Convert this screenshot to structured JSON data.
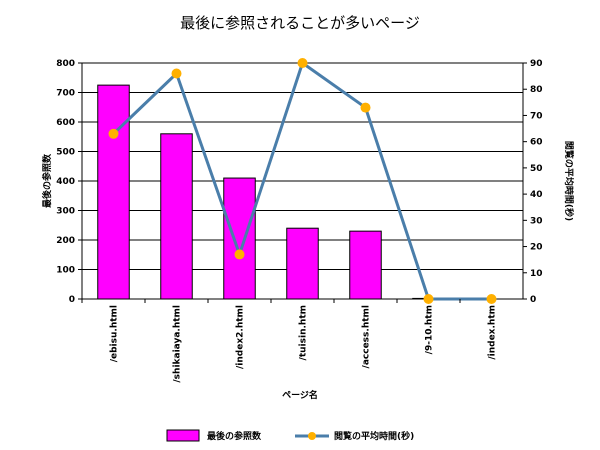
{
  "chart_data": {
    "type": "bar",
    "title": "最後に参照されることが多いページ",
    "xlabel": "ページ名",
    "ylabel": "最後の参照数",
    "y2label": "閲覧の平均時間(秒)",
    "categories": [
      "/ebisu.html",
      "/shikaiaya.html",
      "/index2.html",
      "/tuisin.htm",
      "/access.html",
      "/9-10.htm",
      "/index.htm"
    ],
    "ylim": [
      0,
      800
    ],
    "y2lim": [
      0,
      90
    ],
    "yticks": [
      0,
      100,
      200,
      300,
      400,
      500,
      600,
      700,
      800
    ],
    "y2ticks": [
      0,
      10,
      20,
      30,
      40,
      50,
      60,
      70,
      80,
      90
    ],
    "grid": true,
    "legend_position": "bottom",
    "series": [
      {
        "name": "最後の参照数",
        "type": "bar",
        "axis": "left",
        "color": "#ff00ff",
        "values": [
          725,
          560,
          410,
          240,
          230,
          2,
          0
        ]
      },
      {
        "name": "閲覧の平均時間(秒)",
        "type": "line",
        "axis": "right",
        "color": "#4a7eaa",
        "marker_color": "#ffb000",
        "values": [
          63,
          86,
          17,
          90,
          73,
          0,
          0
        ]
      }
    ]
  }
}
